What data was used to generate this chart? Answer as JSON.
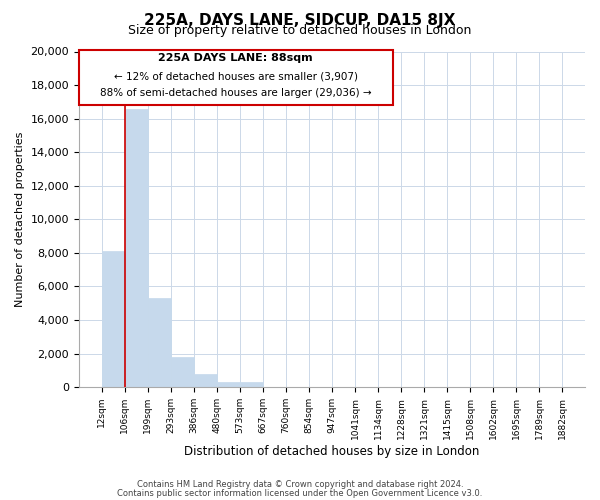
{
  "title": "225A, DAYS LANE, SIDCUP, DA15 8JX",
  "subtitle": "Size of property relative to detached houses in London",
  "xlabel": "Distribution of detached houses by size in London",
  "ylabel": "Number of detached properties",
  "bar_values": [
    8100,
    16600,
    5300,
    1800,
    800,
    300,
    300,
    0,
    0,
    0,
    0,
    0,
    0,
    0,
    0,
    0,
    0,
    0,
    0,
    0
  ],
  "bar_color": "#c6d9ec",
  "bar_edge_color": "#c6d9ec",
  "highlight_color": "#cc0000",
  "x_labels": [
    "12sqm",
    "106sqm",
    "199sqm",
    "293sqm",
    "386sqm",
    "480sqm",
    "573sqm",
    "667sqm",
    "760sqm",
    "854sqm",
    "947sqm",
    "1041sqm",
    "1134sqm",
    "1228sqm",
    "1321sqm",
    "1415sqm",
    "1508sqm",
    "1602sqm",
    "1695sqm",
    "1789sqm",
    "1882sqm"
  ],
  "ylim": [
    0,
    20000
  ],
  "yticks": [
    0,
    2000,
    4000,
    6000,
    8000,
    10000,
    12000,
    14000,
    16000,
    18000,
    20000
  ],
  "annotation_title": "225A DAYS LANE: 88sqm",
  "annotation_line1": "← 12% of detached houses are smaller (3,907)",
  "annotation_line2": "88% of semi-detached houses are larger (29,036) →",
  "annotation_box_color": "#ffffff",
  "annotation_box_edge": "#cc0000",
  "vline_color": "#cc0000",
  "footer1": "Contains HM Land Registry data © Crown copyright and database right 2024.",
  "footer2": "Contains public sector information licensed under the Open Government Licence v3.0.",
  "background_color": "#ffffff",
  "grid_color": "#ccd8e8"
}
